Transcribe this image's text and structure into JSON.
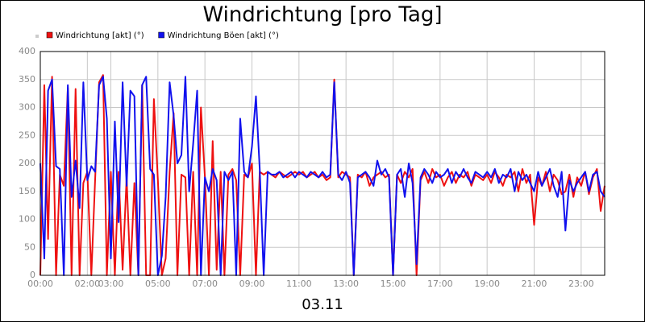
{
  "chart_data": {
    "type": "line",
    "title": "Windrichtung [pro Tag]",
    "x_label": "03.11",
    "xlim": [
      0,
      24
    ],
    "ylim": [
      0,
      400
    ],
    "xticks": [
      {
        "value": 0,
        "label": "00:00"
      },
      {
        "value": 2,
        "label": "02:00"
      },
      {
        "value": 3,
        "label": "03:00"
      },
      {
        "value": 5,
        "label": "05:00"
      },
      {
        "value": 7,
        "label": "07:00"
      },
      {
        "value": 9,
        "label": "09:00"
      },
      {
        "value": 11,
        "label": "11:00"
      },
      {
        "value": 13,
        "label": "13:00"
      },
      {
        "value": 15,
        "label": "15:00"
      },
      {
        "value": 17,
        "label": "17:00"
      },
      {
        "value": 19,
        "label": "19:00"
      },
      {
        "value": 21,
        "label": "21:00"
      },
      {
        "value": 23,
        "label": "23:00"
      }
    ],
    "yticks": [
      0,
      50,
      100,
      150,
      200,
      250,
      300,
      350,
      400
    ],
    "grid": true,
    "x": [
      0,
      0.17,
      0.33,
      0.5,
      0.67,
      0.83,
      1,
      1.17,
      1.33,
      1.5,
      1.67,
      1.83,
      2,
      2.17,
      2.33,
      2.5,
      2.67,
      2.83,
      3,
      3.17,
      3.33,
      3.5,
      3.67,
      3.83,
      4,
      4.17,
      4.33,
      4.5,
      4.67,
      4.83,
      5,
      5.17,
      5.33,
      5.5,
      5.67,
      5.83,
      6,
      6.17,
      6.33,
      6.5,
      6.67,
      6.83,
      7,
      7.17,
      7.33,
      7.5,
      7.67,
      7.83,
      8,
      8.17,
      8.33,
      8.5,
      8.67,
      8.83,
      9,
      9.17,
      9.33,
      9.5,
      9.67,
      9.83,
      10,
      10.17,
      10.33,
      10.5,
      10.67,
      10.83,
      11,
      11.17,
      11.33,
      11.5,
      11.67,
      11.83,
      12,
      12.17,
      12.33,
      12.5,
      12.67,
      12.83,
      13,
      13.17,
      13.33,
      13.5,
      13.67,
      13.83,
      14,
      14.17,
      14.33,
      14.5,
      14.67,
      14.83,
      15,
      15.17,
      15.33,
      15.5,
      15.67,
      15.83,
      16,
      16.17,
      16.33,
      16.5,
      16.67,
      16.83,
      17,
      17.17,
      17.33,
      17.5,
      17.67,
      17.83,
      18,
      18.17,
      18.33,
      18.5,
      18.67,
      18.83,
      19,
      19.17,
      19.33,
      19.5,
      19.67,
      19.83,
      20,
      20.17,
      20.33,
      20.5,
      20.67,
      20.83,
      21,
      21.17,
      21.33,
      21.5,
      21.67,
      21.83,
      22,
      22.17,
      22.33,
      22.5,
      22.67,
      22.83,
      23,
      23.17,
      23.33,
      23.5,
      23.67,
      23.83,
      24
    ],
    "series": [
      {
        "name": "Windrichtung [akt] (°)",
        "color": "#ee1111",
        "values": [
          0,
          340,
          65,
          355,
          0,
          180,
          160,
          335,
          0,
          333,
          0,
          165,
          185,
          0,
          170,
          345,
          358,
          0,
          185,
          0,
          185,
          10,
          175,
          0,
          165,
          0,
          340,
          0,
          0,
          315,
          170,
          0,
          30,
          185,
          290,
          0,
          180,
          175,
          0,
          185,
          0,
          300,
          175,
          0,
          240,
          10,
          185,
          0,
          180,
          190,
          170,
          0,
          180,
          175,
          200,
          0,
          185,
          180,
          185,
          180,
          175,
          185,
          180,
          175,
          180,
          185,
          180,
          185,
          175,
          180,
          185,
          175,
          180,
          170,
          175,
          350,
          175,
          185,
          180,
          175,
          0,
          180,
          175,
          185,
          160,
          175,
          180,
          185,
          175,
          180,
          0,
          180,
          165,
          185,
          175,
          190,
          0,
          170,
          185,
          165,
          190,
          175,
          180,
          160,
          175,
          185,
          165,
          180,
          175,
          185,
          160,
          180,
          175,
          170,
          180,
          165,
          185,
          175,
          160,
          180,
          175,
          185,
          150,
          190,
          165,
          180,
          90,
          175,
          160,
          185,
          150,
          180,
          170,
          145,
          150,
          180,
          140,
          175,
          160,
          185,
          145,
          175,
          190,
          115,
          160
        ]
      },
      {
        "name": "Windrichtung Böen [akt] (°)",
        "color": "#1111ee",
        "values": [
          200,
          30,
          330,
          350,
          195,
          190,
          0,
          340,
          140,
          205,
          120,
          345,
          170,
          195,
          185,
          340,
          355,
          280,
          30,
          275,
          95,
          345,
          160,
          330,
          320,
          0,
          340,
          355,
          190,
          180,
          0,
          35,
          140,
          345,
          285,
          200,
          215,
          355,
          150,
          235,
          330,
          0,
          175,
          150,
          190,
          170,
          0,
          185,
          170,
          185,
          0,
          280,
          185,
          175,
          230,
          320,
          190,
          0,
          185,
          180,
          180,
          185,
          175,
          180,
          185,
          175,
          185,
          180,
          175,
          185,
          180,
          175,
          185,
          175,
          180,
          345,
          180,
          170,
          185,
          165,
          0,
          175,
          180,
          185,
          175,
          160,
          205,
          180,
          190,
          175,
          0,
          180,
          190,
          140,
          200,
          165,
          20,
          175,
          190,
          180,
          165,
          185,
          175,
          180,
          190,
          165,
          185,
          175,
          190,
          175,
          165,
          185,
          180,
          175,
          185,
          175,
          190,
          165,
          180,
          175,
          190,
          150,
          185,
          170,
          180,
          165,
          150,
          185,
          160,
          175,
          190,
          160,
          140,
          185,
          80,
          170,
          150,
          165,
          175,
          185,
          150,
          180,
          185,
          150,
          140
        ]
      }
    ]
  }
}
